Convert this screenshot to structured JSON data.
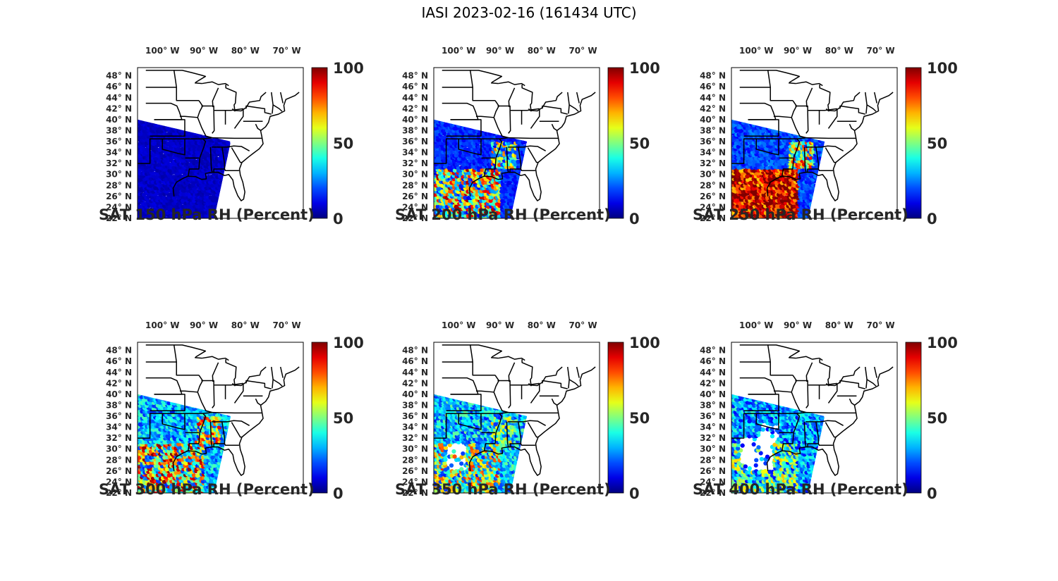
{
  "title": "IASI 2023-02-16 (161434 UTC)",
  "lon_ticks": [
    "100°W",
    "90°W",
    "80°W",
    "70°W"
  ],
  "lat_ticks": [
    "48°N",
    "46°N",
    "44°N",
    "42°N",
    "40°N",
    "38°N",
    "36°N",
    "34°N",
    "32°N",
    "30°N",
    "28°N",
    "26°N",
    "24°N",
    "22°N"
  ],
  "colorbar": {
    "ticks": [
      "100",
      "50",
      "0"
    ],
    "range": [
      0,
      100
    ],
    "colormap": "jet"
  },
  "panels": [
    {
      "label": "SAT 150 hPa RH (Percent)",
      "level_hpa": 150,
      "dominant_rh": 5
    },
    {
      "label": "SAT 200 hPa RH (Percent)",
      "level_hpa": 200,
      "dominant_rh": 15
    },
    {
      "label": "SAT 250 hPa RH (Percent)",
      "level_hpa": 250,
      "dominant_rh": 20
    },
    {
      "label": "SAT 300 hPa RH (Percent)",
      "level_hpa": 300,
      "dominant_rh": 25
    },
    {
      "label": "SAT 350 hPa RH (Percent)",
      "level_hpa": 350,
      "dominant_rh": 30
    },
    {
      "label": "SAT 400 hPa RH (Percent)",
      "level_hpa": 400,
      "dominant_rh": 25
    }
  ]
}
